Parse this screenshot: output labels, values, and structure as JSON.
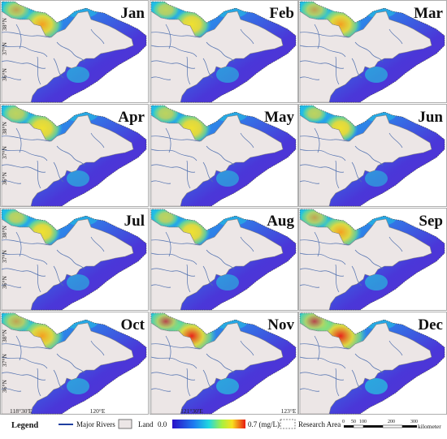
{
  "panels": [
    {
      "month": "Jan",
      "intensity": 0.55
    },
    {
      "month": "Feb",
      "intensity": 0.45
    },
    {
      "month": "Mar",
      "intensity": 0.55
    },
    {
      "month": "Apr",
      "intensity": 0.5
    },
    {
      "month": "May",
      "intensity": 0.45
    },
    {
      "month": "Jun",
      "intensity": 0.35
    },
    {
      "month": "Jul",
      "intensity": 0.4
    },
    {
      "month": "Aug",
      "intensity": 0.4
    },
    {
      "month": "Sep",
      "intensity": 0.55
    },
    {
      "month": "Oct",
      "intensity": 0.6
    },
    {
      "month": "Nov",
      "intensity": 0.75
    },
    {
      "month": "Dec",
      "intensity": 0.85
    }
  ],
  "lat_ticks": [
    "38°N",
    "37°N",
    "36°N"
  ],
  "lon_ticks": [
    "118°30'E",
    "120°E",
    "121°30'E",
    "123°E"
  ],
  "legend": {
    "title": "Legend",
    "rivers_label": "Major Rivers",
    "land_label": "Land",
    "scale_min": "0.0",
    "scale_max": "0.7 (mg/L)",
    "research_label": "Research Area",
    "scalebar_ticks": [
      "0",
      "50",
      "100",
      "200",
      "300"
    ],
    "scalebar_unit": "kilometer"
  },
  "colors": {
    "land": "#ece6e6",
    "rivers": "#4f6fae",
    "sea_low": "#4a37d8",
    "sea_mid": "#1ec6e8",
    "high": "#f0e030",
    "peak": "#e8241a"
  }
}
